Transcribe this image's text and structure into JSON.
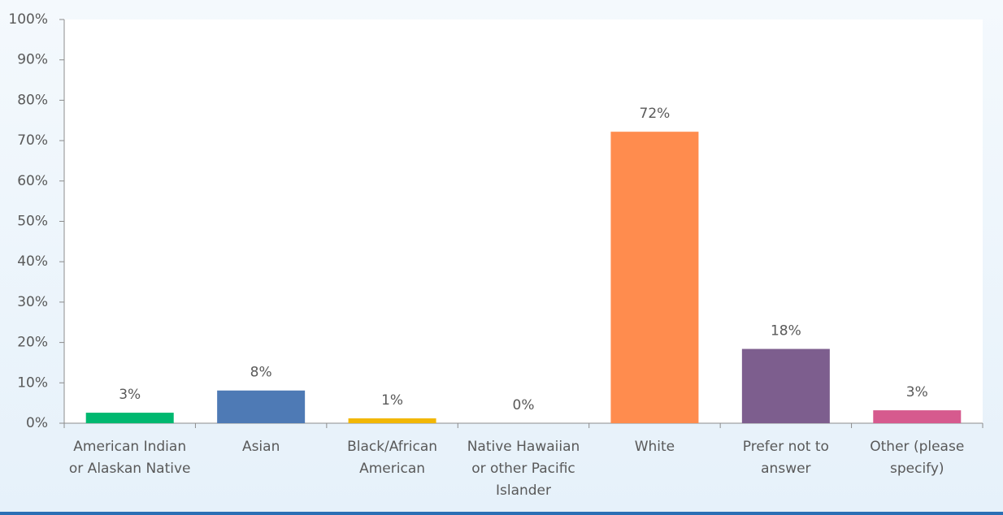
{
  "chart_data": {
    "type": "bar",
    "categories": [
      "American Indian or Alaskan Native",
      "Asian",
      "Black/African American",
      "Native Hawaiian or other Pacific Islander",
      "White",
      "Prefer not to answer",
      "Other (please specify)"
    ],
    "values": [
      2.6,
      8.1,
      1.2,
      0,
      72.2,
      18.4,
      3.2
    ],
    "value_labels": [
      "3%",
      "8%",
      "1%",
      "0%",
      "72%",
      "18%",
      "3%"
    ],
    "colors": [
      "#00b870",
      "#4e7ab5",
      "#f2b705",
      "#9e9e9e",
      "#ff8c4e",
      "#7d5e8e",
      "#d65a8e"
    ],
    "ylim": [
      0,
      100
    ],
    "yticks": [
      {
        "value": 0,
        "label": "0%"
      },
      {
        "value": 10,
        "label": "10%"
      },
      {
        "value": 20,
        "label": "20%"
      },
      {
        "value": 30,
        "label": "30%"
      },
      {
        "value": 40,
        "label": "40%"
      },
      {
        "value": 50,
        "label": "50%"
      },
      {
        "value": 60,
        "label": "60%"
      },
      {
        "value": 70,
        "label": "70%"
      },
      {
        "value": 80,
        "label": "80%"
      },
      {
        "value": 90,
        "label": "90%"
      },
      {
        "value": 100,
        "label": "100%"
      }
    ]
  }
}
